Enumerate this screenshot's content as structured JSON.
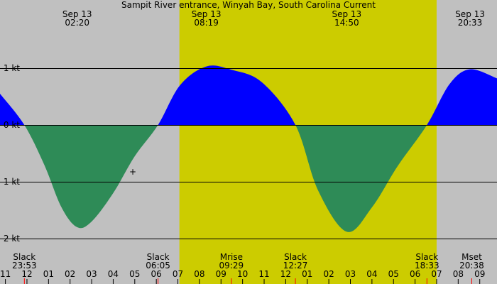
{
  "chart_data": {
    "type": "area",
    "title": "Sampit River entrance, Winyah Bay, South Carolina Current",
    "units": "kt",
    "ylim": [
      -2.2,
      1.25
    ],
    "y_ticks": [
      {
        "value": 1,
        "label": "1 kt"
      },
      {
        "value": 0,
        "label": "0 kt"
      },
      {
        "value": -1,
        "label": "-1 kt"
      },
      {
        "value": -2,
        "label": "-2 kt"
      }
    ],
    "xlim": [
      -1.25,
      21.8
    ],
    "daylight": {
      "start": 7.07,
      "end": 19.0
    },
    "current_series": [
      {
        "x": -1.25,
        "y": 0.55
      },
      {
        "x": -0.12,
        "y": 0.0
      },
      {
        "x": 0.8,
        "y": -0.7
      },
      {
        "x": 1.6,
        "y": -1.45
      },
      {
        "x": 2.33,
        "y": -1.8
      },
      {
        "x": 3.0,
        "y": -1.7
      },
      {
        "x": 4.0,
        "y": -1.2
      },
      {
        "x": 5.0,
        "y": -0.55
      },
      {
        "x": 6.08,
        "y": 0.0
      },
      {
        "x": 7.1,
        "y": 0.7
      },
      {
        "x": 8.32,
        "y": 1.03
      },
      {
        "x": 9.5,
        "y": 0.97
      },
      {
        "x": 10.9,
        "y": 0.75
      },
      {
        "x": 12.45,
        "y": 0.0
      },
      {
        "x": 13.5,
        "y": -1.15
      },
      {
        "x": 14.83,
        "y": -1.88
      },
      {
        "x": 16.0,
        "y": -1.45
      },
      {
        "x": 17.2,
        "y": -0.72
      },
      {
        "x": 18.55,
        "y": 0.0
      },
      {
        "x": 19.6,
        "y": 0.72
      },
      {
        "x": 20.55,
        "y": 0.98
      },
      {
        "x": 21.8,
        "y": 0.82
      }
    ],
    "extremes": [
      {
        "x": 2.33,
        "date": "Sep 13",
        "time": "02:20"
      },
      {
        "x": 8.32,
        "date": "Sep 13",
        "time": "08:19"
      },
      {
        "x": 14.83,
        "date": "Sep 13",
        "time": "14:50"
      },
      {
        "x": 20.55,
        "date": "Sep 13",
        "time": "20:33"
      }
    ],
    "events": [
      {
        "x": -0.12,
        "label": "Slack",
        "time": "23:53"
      },
      {
        "x": 6.08,
        "label": "Slack",
        "time": "06:05"
      },
      {
        "x": 9.48,
        "label": "Mrise",
        "time": "09:29"
      },
      {
        "x": 12.45,
        "label": "Slack",
        "time": "12:27"
      },
      {
        "x": 18.55,
        "label": "Slack",
        "time": "18:33"
      },
      {
        "x": 20.63,
        "label": "Mset",
        "time": "20:38"
      }
    ],
    "hour_ticks": [
      {
        "x": -1,
        "label": "11"
      },
      {
        "x": 0,
        "label": "12"
      },
      {
        "x": 1,
        "label": "01"
      },
      {
        "x": 2,
        "label": "02"
      },
      {
        "x": 3,
        "label": "03"
      },
      {
        "x": 4,
        "label": "04"
      },
      {
        "x": 5,
        "label": "05"
      },
      {
        "x": 6,
        "label": "06"
      },
      {
        "x": 7,
        "label": "07"
      },
      {
        "x": 8,
        "label": "08"
      },
      {
        "x": 9,
        "label": "09"
      },
      {
        "x": 10,
        "label": "10"
      },
      {
        "x": 11,
        "label": "11"
      },
      {
        "x": 12,
        "label": "12"
      },
      {
        "x": 13,
        "label": "01"
      },
      {
        "x": 14,
        "label": "02"
      },
      {
        "x": 15,
        "label": "03"
      },
      {
        "x": 16,
        "label": "04"
      },
      {
        "x": 17,
        "label": "05"
      },
      {
        "x": 18,
        "label": "06"
      },
      {
        "x": 19,
        "label": "07"
      },
      {
        "x": 20,
        "label": "08"
      },
      {
        "x": 21,
        "label": "09"
      }
    ],
    "colors": {
      "night": "#c0c0c0",
      "day": "#cccc00",
      "flood": "#0000ff",
      "ebb": "#2e8b57",
      "grid": "#000000",
      "event_tick": "#ff0000"
    }
  },
  "cursor": {
    "symbol": "+"
  }
}
